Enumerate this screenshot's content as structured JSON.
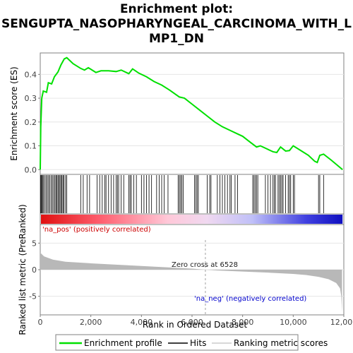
{
  "title_line1": "Enrichment plot:",
  "title_line2": "SENGUPTA_NASOPHARYNGEAL_CARCINOMA_WITH_L",
  "title_line3": "MP1_DN",
  "chart_data": {
    "type": "line",
    "x_max": 11950,
    "es_panel": {
      "ylabel": "Enrichment score (ES)",
      "yticks": [
        "0.0",
        "0.1",
        "0.2",
        "0.3",
        "0.4"
      ],
      "ytick_values": [
        0.0,
        0.1,
        0.2,
        0.3,
        0.4
      ],
      "ylim": [
        -0.02,
        0.49
      ],
      "profile": [
        [
          0,
          0
        ],
        [
          20,
          0.18
        ],
        [
          60,
          0.3
        ],
        [
          120,
          0.33
        ],
        [
          250,
          0.325
        ],
        [
          320,
          0.365
        ],
        [
          450,
          0.36
        ],
        [
          560,
          0.39
        ],
        [
          700,
          0.41
        ],
        [
          820,
          0.44
        ],
        [
          950,
          0.465
        ],
        [
          1050,
          0.47
        ],
        [
          1300,
          0.445
        ],
        [
          1600,
          0.425
        ],
        [
          1750,
          0.418
        ],
        [
          1900,
          0.428
        ],
        [
          2200,
          0.408
        ],
        [
          2400,
          0.415
        ],
        [
          2700,
          0.415
        ],
        [
          3000,
          0.412
        ],
        [
          3200,
          0.418
        ],
        [
          3500,
          0.403
        ],
        [
          3650,
          0.423
        ],
        [
          3900,
          0.405
        ],
        [
          4200,
          0.39
        ],
        [
          4500,
          0.37
        ],
        [
          4800,
          0.355
        ],
        [
          5100,
          0.335
        ],
        [
          5500,
          0.305
        ],
        [
          5700,
          0.3
        ],
        [
          6000,
          0.275
        ],
        [
          6300,
          0.25
        ],
        [
          6600,
          0.225
        ],
        [
          6900,
          0.2
        ],
        [
          7200,
          0.18
        ],
        [
          7500,
          0.165
        ],
        [
          7800,
          0.15
        ],
        [
          8000,
          0.14
        ],
        [
          8300,
          0.115
        ],
        [
          8550,
          0.095
        ],
        [
          8700,
          0.1
        ],
        [
          8900,
          0.09
        ],
        [
          9200,
          0.075
        ],
        [
          9350,
          0.072
        ],
        [
          9500,
          0.095
        ],
        [
          9700,
          0.078
        ],
        [
          9850,
          0.08
        ],
        [
          10000,
          0.1
        ],
        [
          10300,
          0.08
        ],
        [
          10600,
          0.06
        ],
        [
          10850,
          0.035
        ],
        [
          10950,
          0.03
        ],
        [
          11050,
          0.06
        ],
        [
          11200,
          0.065
        ],
        [
          11500,
          0.04
        ],
        [
          11950,
          0.0
        ]
      ],
      "legend_profile": "Enrichment profile"
    },
    "hits": [
      20,
      35,
      60,
      90,
      130,
      180,
      230,
      280,
      330,
      380,
      430,
      480,
      530,
      580,
      620,
      660,
      700,
      740,
      780,
      820,
      860,
      900,
      940,
      1000,
      1050,
      1600,
      1700,
      1850,
      1950,
      2250,
      2350,
      2450,
      2550,
      2600,
      2700,
      2800,
      2900,
      3000,
      3050,
      3100,
      3200,
      3300,
      3500,
      3550,
      3600,
      3700,
      3800,
      4000,
      4100,
      4200,
      4300,
      4400,
      4600,
      4700,
      4800,
      4900,
      5050,
      5450,
      5500,
      5550,
      5600,
      5650,
      6100,
      6150,
      6200,
      6250,
      6600,
      6700,
      6750,
      7000,
      7100,
      7200,
      7300,
      7400,
      7500,
      7550,
      7700,
      7800,
      8400,
      8450,
      8500,
      8550,
      8600,
      8900,
      9000,
      9100,
      9200,
      9250,
      9300,
      9400,
      9450,
      9500,
      9550,
      9600,
      9700,
      9800,
      9850,
      9900,
      10000,
      10050,
      11000,
      11050,
      11200
    ],
    "legend_hits": "Hits",
    "rank_panel": {
      "ylabel": "Ranked list metric (PreRanked)",
      "yticks": [
        "5",
        "0",
        "-5"
      ],
      "ytick_values": [
        5,
        0,
        -5
      ],
      "ylim": [
        -8.5,
        8.5
      ],
      "metric": [
        [
          0,
          3.2
        ],
        [
          150,
          2.5
        ],
        [
          500,
          1.9
        ],
        [
          1000,
          1.5
        ],
        [
          2000,
          1.2
        ],
        [
          3000,
          0.95
        ],
        [
          4000,
          0.7
        ],
        [
          5000,
          0.45
        ],
        [
          6000,
          0.2
        ],
        [
          6528,
          0
        ],
        [
          7000,
          -0.15
        ],
        [
          8000,
          -0.35
        ],
        [
          9000,
          -0.55
        ],
        [
          10000,
          -0.8
        ],
        [
          10500,
          -1.0
        ],
        [
          11000,
          -1.35
        ],
        [
          11400,
          -1.8
        ],
        [
          11700,
          -2.5
        ],
        [
          11850,
          -3.5
        ],
        [
          11900,
          -5
        ],
        [
          11930,
          -8
        ]
      ],
      "zero_cross_text": "Zero cross at 6528",
      "zero_cross": 6528,
      "pos_label": "'na_pos' (positively correlated)",
      "neg_label": "'na_neg' (negatively correlated)",
      "legend_metric": "Ranking metric scores"
    },
    "xlabel": "Rank in Ordered Dataset",
    "xticks": [
      "0",
      "2,000",
      "4,000",
      "6,000",
      "8,000",
      "10,000",
      "12,000"
    ],
    "xtick_values": [
      0,
      2000,
      4000,
      6000,
      8000,
      10000,
      12000
    ],
    "colors": {
      "profile": "#00e000",
      "pos": "#e01010",
      "neg": "#1010d0",
      "metric_fill": "#b8b8b8",
      "pos_text": "#cc0000",
      "neg_text": "#0000cc"
    }
  }
}
